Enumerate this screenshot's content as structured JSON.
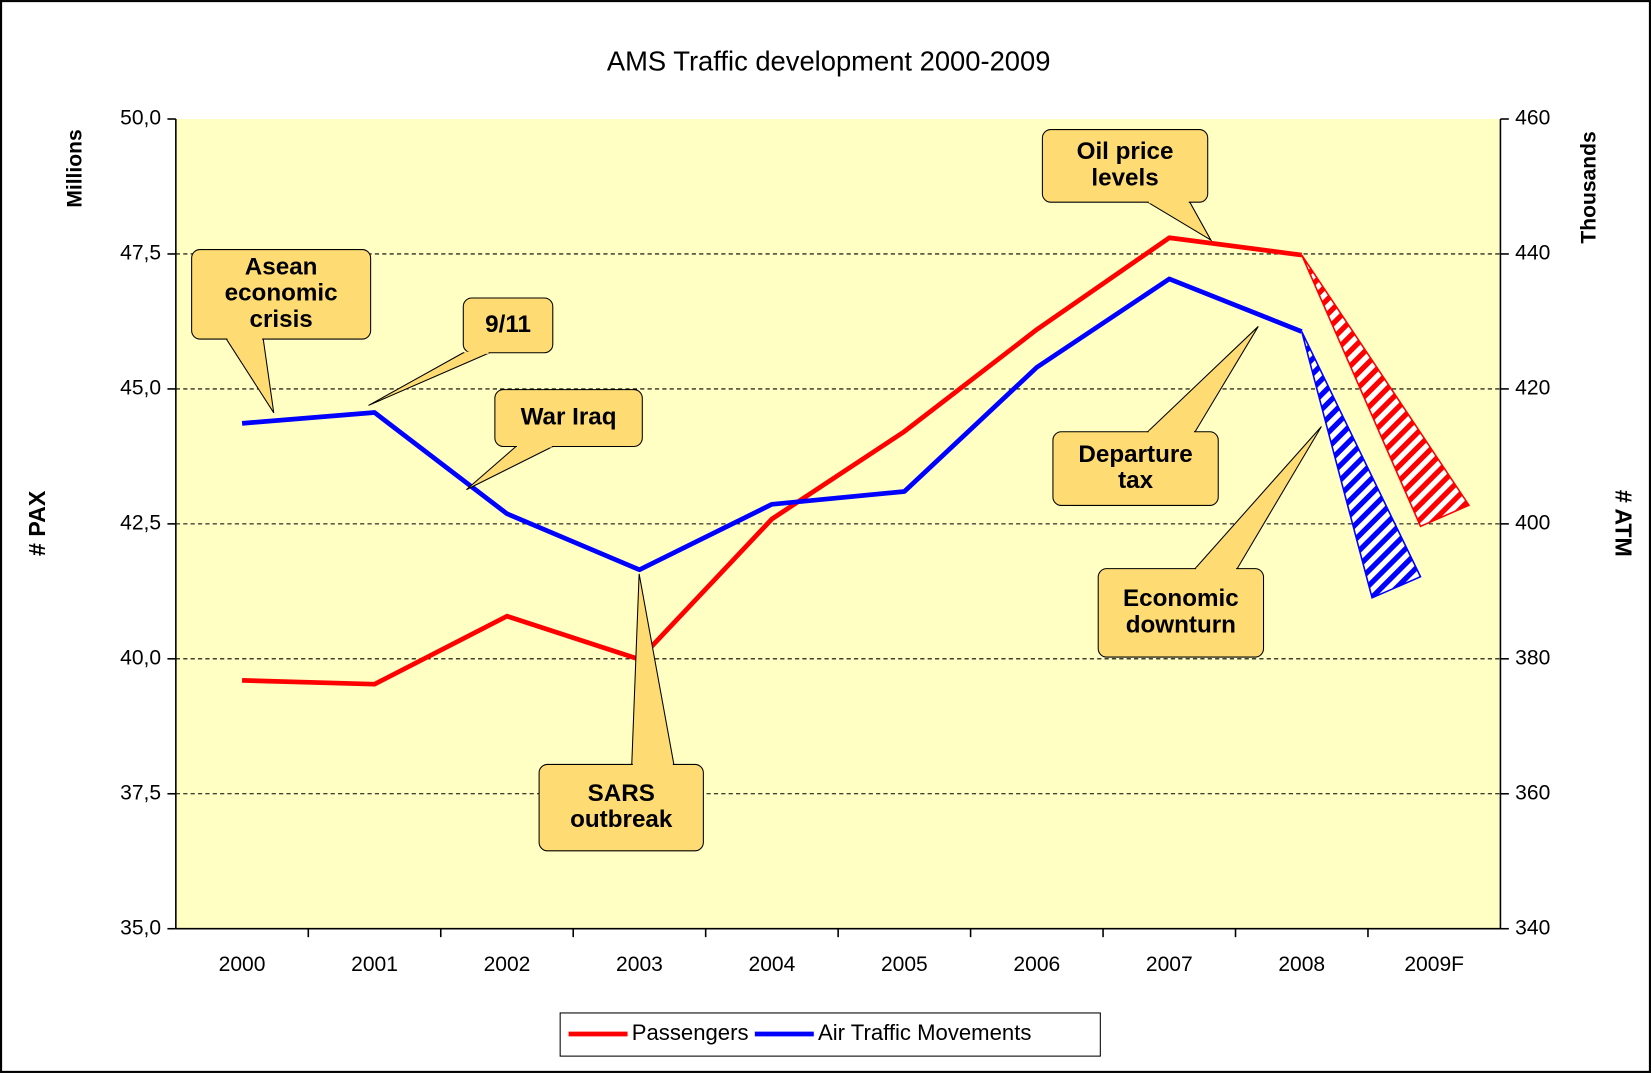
{
  "chart_data": {
    "type": "line",
    "title": "AMS Traffic development 2000-2009",
    "y_label": "# PAX",
    "y_unit": "Millions",
    "y2_label": "# ATM",
    "y2_unit": "Thousands",
    "categories": [
      "2000",
      "2001",
      "2002",
      "2003",
      "2004",
      "2005",
      "2006",
      "2007",
      "2008",
      "2009F"
    ],
    "series": [
      {
        "name": "Passengers",
        "color": "#ff0000",
        "values": [
          39.6,
          39.53,
          40.79,
          39.99,
          42.59,
          44.21,
          46.1,
          47.8,
          47.48,
          42.65
        ]
      },
      {
        "name": "Air Traffic Movements",
        "color": "#0000ff",
        "axis": "y2",
        "values": [
          414.9,
          416.5,
          401.5,
          393.2,
          402.9,
          404.8,
          423.2,
          436.3,
          428.5,
          390.6
        ]
      }
    ],
    "forecast_category": "2009F",
    "ylim": [
      35,
      50
    ],
    "yticks": [
      {
        "value": 35,
        "label": "35,0"
      },
      {
        "value": 37.5,
        "label": "37,5"
      },
      {
        "value": 40,
        "label": "40,0"
      },
      {
        "value": 42.5,
        "label": "42,5"
      },
      {
        "value": 45,
        "label": "45,0"
      },
      {
        "value": 47.5,
        "label": "47,5"
      },
      {
        "value": 50,
        "label": "50,0"
      }
    ],
    "y2lim": [
      340,
      460
    ],
    "y2ticks": [
      340,
      360,
      380,
      400,
      420,
      440,
      460
    ],
    "grid": true,
    "legend": "bottom",
    "annotations": [
      {
        "lines": [
          "Asean",
          "economic",
          "crisis"
        ]
      },
      {
        "lines": [
          "9/11"
        ]
      },
      {
        "lines": [
          "War Iraq"
        ]
      },
      {
        "lines": [
          "SARS",
          "outbreak"
        ]
      },
      {
        "lines": [
          "Oil price",
          "levels"
        ]
      },
      {
        "lines": [
          "Departure",
          "tax"
        ]
      },
      {
        "lines": [
          "Economic",
          "downturn"
        ]
      }
    ]
  }
}
